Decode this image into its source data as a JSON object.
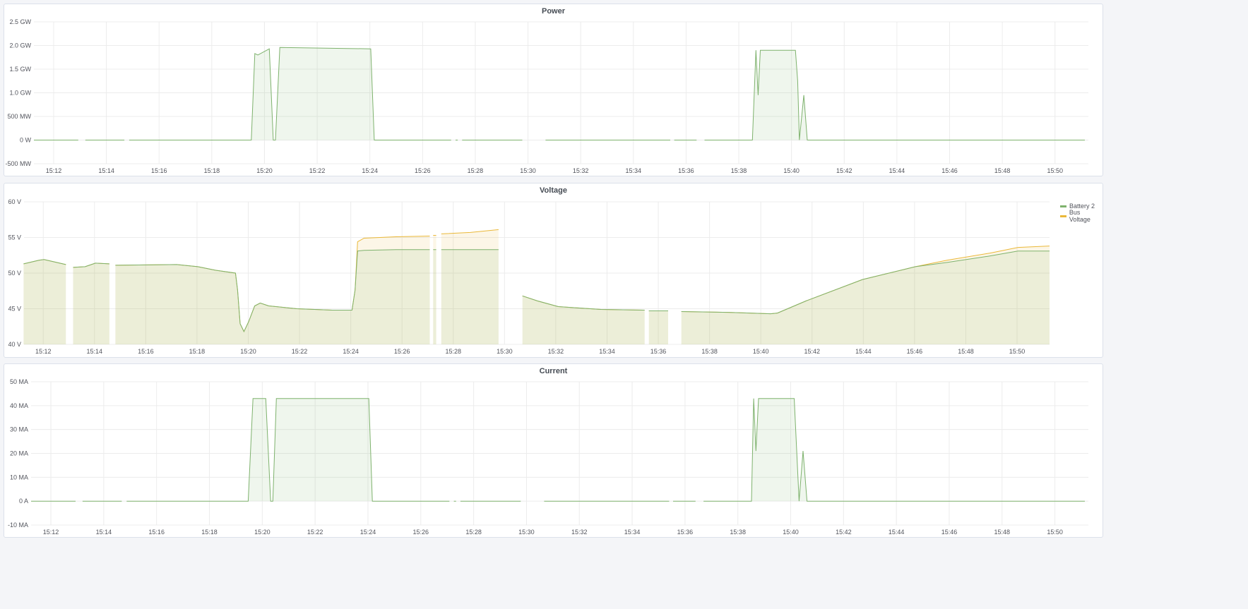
{
  "colors": {
    "battery": "#7EB26D",
    "bus": "#EAB839",
    "grid": "#ececec"
  },
  "chart_data": [
    {
      "id": "power",
      "type": "area",
      "title": "Power",
      "xlim": [
        "15:11:15",
        "15:51:16"
      ],
      "xticks": [
        "15:12",
        "15:14",
        "15:16",
        "15:18",
        "15:20",
        "15:22",
        "15:24",
        "15:26",
        "15:28",
        "15:30",
        "15:32",
        "15:34",
        "15:36",
        "15:38",
        "15:40",
        "15:42",
        "15:44",
        "15:46",
        "15:48",
        "15:50"
      ],
      "ylim": [
        -0.5,
        2.5
      ],
      "yunit": "GW",
      "yticks": [
        {
          "v": 2.5,
          "label": "2.5 GW"
        },
        {
          "v": 2.0,
          "label": "2.0 GW"
        },
        {
          "v": 1.5,
          "label": "1.5 GW"
        },
        {
          "v": 1.0,
          "label": "1.0 GW"
        },
        {
          "v": 0.5,
          "label": "500 MW"
        },
        {
          "v": 0,
          "label": "0 W"
        },
        {
          "v": -0.5,
          "label": "-500 MW"
        }
      ],
      "grid": true,
      "series": [
        {
          "color": "#7EB26D",
          "points": [
            [
              "15:11:15",
              0
            ],
            [
              "15:12:56",
              0
            ],
            null,
            [
              "15:13:12",
              0
            ],
            [
              "15:14:41",
              0
            ],
            null,
            [
              "15:14:52",
              0
            ],
            [
              "15:19:30",
              0
            ],
            [
              "15:19:38",
              1.83
            ],
            [
              "15:19:45",
              1.8
            ],
            [
              "15:20:11",
              1.93
            ],
            [
              "15:20:20",
              0
            ],
            [
              "15:20:25",
              0
            ],
            [
              "15:20:35",
              1.96
            ],
            [
              "15:24:02",
              1.93
            ],
            [
              "15:24:10",
              0
            ],
            [
              "15:27:05",
              0
            ],
            null,
            [
              "15:27:15",
              0
            ],
            [
              "15:27:20",
              0
            ],
            null,
            [
              "15:27:30",
              0
            ],
            [
              "15:29:47",
              0
            ],
            null,
            [
              "15:30:40",
              0
            ],
            [
              "15:35:24",
              0
            ],
            null,
            [
              "15:35:33",
              0
            ],
            [
              "15:36:24",
              0
            ],
            null,
            [
              "15:36:42",
              0
            ],
            [
              "15:38:31",
              0
            ],
            [
              "15:38:39",
              1.9
            ],
            [
              "15:38:44",
              0.95
            ],
            [
              "15:38:49",
              1.9
            ],
            [
              "15:40:09",
              1.9
            ],
            [
              "15:40:14",
              1.25
            ],
            [
              "15:40:18",
              0
            ],
            [
              "15:40:28",
              0.95
            ],
            [
              "15:40:36",
              0
            ],
            [
              "15:51:08",
              0
            ]
          ]
        }
      ]
    },
    {
      "id": "voltage",
      "type": "area",
      "title": "Voltage",
      "xlim": [
        "15:11:15",
        "15:51:16"
      ],
      "xticks": [
        "15:12",
        "15:14",
        "15:16",
        "15:18",
        "15:20",
        "15:22",
        "15:24",
        "15:26",
        "15:28",
        "15:30",
        "15:32",
        "15:34",
        "15:36",
        "15:38",
        "15:40",
        "15:42",
        "15:44",
        "15:46",
        "15:48",
        "15:50"
      ],
      "ylim": [
        40,
        60
      ],
      "yunit": "V",
      "yticks": [
        {
          "v": 60,
          "label": "60 V"
        },
        {
          "v": 55,
          "label": "55 V"
        },
        {
          "v": 50,
          "label": "50 V"
        },
        {
          "v": 45,
          "label": "45 V"
        },
        {
          "v": 40,
          "label": "40 V"
        }
      ],
      "grid": true,
      "legend": "right",
      "series": [
        {
          "name": "Bus Voltage",
          "color": "#EAB839",
          "points": [
            [
              "15:11:14",
              51.3
            ],
            [
              "15:11:50",
              51.8
            ],
            [
              "15:12:02",
              51.9
            ],
            [
              "15:12:53",
              51.2
            ],
            null,
            [
              "15:13:10",
              50.8
            ],
            [
              "15:13:38",
              50.9
            ],
            [
              "15:14:02",
              51.4
            ],
            [
              "15:14:35",
              51.3
            ],
            null,
            [
              "15:14:49",
              51.1
            ],
            [
              "15:17:13",
              51.2
            ],
            [
              "15:18:02",
              50.9
            ],
            [
              "15:18:44",
              50.4
            ],
            [
              "15:19:30",
              50.0
            ],
            [
              "15:19:35",
              47.6
            ],
            [
              "15:19:41",
              42.9
            ],
            [
              "15:19:50",
              41.8
            ],
            [
              "15:20:01",
              43.2
            ],
            [
              "15:20:15",
              45.4
            ],
            [
              "15:20:28",
              45.8
            ],
            [
              "15:20:48",
              45.4
            ],
            [
              "15:21:54",
              45.0
            ],
            [
              "15:23:17",
              44.8
            ],
            [
              "15:24:03",
              44.8
            ],
            [
              "15:24:10",
              47.6
            ],
            [
              "15:24:16",
              54.4
            ],
            [
              "15:24:31",
              54.9
            ],
            [
              "15:25:46",
              55.1
            ],
            [
              "15:27:05",
              55.2
            ],
            null,
            [
              "15:27:13",
              55.3
            ],
            [
              "15:27:20",
              55.3
            ],
            null,
            [
              "15:27:32",
              55.5
            ],
            [
              "15:28:40",
              55.7
            ],
            [
              "15:29:46",
              56.1
            ],
            null,
            [
              "15:30:42",
              46.8
            ],
            [
              "15:31:17",
              46.1
            ],
            [
              "15:32:06",
              45.3
            ],
            [
              "15:33:46",
              44.9
            ],
            [
              "15:35:28",
              44.8
            ],
            null,
            [
              "15:35:38",
              44.7
            ],
            [
              "15:36:23",
              44.7
            ],
            null,
            [
              "15:36:54",
              44.6
            ],
            [
              "15:38:43",
              44.5
            ],
            [
              "15:40:23",
              44.3
            ],
            [
              "15:40:39",
              44.4
            ],
            [
              "15:41:46",
              46.1
            ],
            [
              "15:43:58",
              49.1
            ],
            [
              "15:46:02",
              50.9
            ],
            [
              "15:47:16",
              51.8
            ],
            [
              "15:48:56",
              52.8
            ],
            [
              "15:50:02",
              53.6
            ],
            [
              "15:51:16",
              53.8
            ]
          ]
        },
        {
          "name": "Battery 2",
          "color": "#7EB26D",
          "points": [
            [
              "15:11:14",
              51.3
            ],
            [
              "15:11:50",
              51.8
            ],
            [
              "15:12:02",
              51.9
            ],
            [
              "15:12:53",
              51.2
            ],
            null,
            [
              "15:13:10",
              50.8
            ],
            [
              "15:13:38",
              50.9
            ],
            [
              "15:14:02",
              51.4
            ],
            [
              "15:14:35",
              51.3
            ],
            null,
            [
              "15:14:49",
              51.1
            ],
            [
              "15:17:13",
              51.2
            ],
            [
              "15:18:02",
              50.9
            ],
            [
              "15:18:44",
              50.4
            ],
            [
              "15:19:30",
              50.0
            ],
            [
              "15:19:35",
              47.6
            ],
            [
              "15:19:41",
              42.9
            ],
            [
              "15:19:50",
              41.8
            ],
            [
              "15:20:01",
              43.2
            ],
            [
              "15:20:15",
              45.4
            ],
            [
              "15:20:28",
              45.8
            ],
            [
              "15:20:48",
              45.4
            ],
            [
              "15:21:54",
              45.0
            ],
            [
              "15:23:17",
              44.8
            ],
            [
              "15:24:03",
              44.8
            ],
            [
              "15:24:10",
              47.6
            ],
            [
              "15:24:16",
              53.1
            ],
            [
              "15:24:31",
              53.2
            ],
            [
              "15:25:46",
              53.3
            ],
            [
              "15:27:05",
              53.3
            ],
            null,
            [
              "15:27:13",
              53.3
            ],
            [
              "15:27:20",
              53.3
            ],
            null,
            [
              "15:27:32",
              53.3
            ],
            [
              "15:28:40",
              53.3
            ],
            [
              "15:29:46",
              53.3
            ],
            null,
            [
              "15:30:42",
              46.8
            ],
            [
              "15:31:17",
              46.1
            ],
            [
              "15:32:06",
              45.3
            ],
            [
              "15:33:46",
              44.9
            ],
            [
              "15:35:28",
              44.8
            ],
            null,
            [
              "15:35:38",
              44.7
            ],
            [
              "15:36:23",
              44.7
            ],
            null,
            [
              "15:36:54",
              44.6
            ],
            [
              "15:38:43",
              44.5
            ],
            [
              "15:40:23",
              44.3
            ],
            [
              "15:40:39",
              44.4
            ],
            [
              "15:41:46",
              46.1
            ],
            [
              "15:43:58",
              49.1
            ],
            [
              "15:46:02",
              50.9
            ],
            [
              "15:47:16",
              51.5
            ],
            [
              "15:48:56",
              52.4
            ],
            [
              "15:50:02",
              53.1
            ],
            [
              "15:51:16",
              53.1
            ]
          ]
        }
      ]
    },
    {
      "id": "current",
      "type": "area",
      "title": "Current",
      "xlim": [
        "15:11:15",
        "15:51:16"
      ],
      "xticks": [
        "15:12",
        "15:14",
        "15:16",
        "15:18",
        "15:20",
        "15:22",
        "15:24",
        "15:26",
        "15:28",
        "15:30",
        "15:32",
        "15:34",
        "15:36",
        "15:38",
        "15:40",
        "15:42",
        "15:44",
        "15:46",
        "15:48",
        "15:50"
      ],
      "ylim": [
        -10,
        50
      ],
      "yunit": "MA",
      "yticks": [
        {
          "v": 50,
          "label": "50 MA"
        },
        {
          "v": 40,
          "label": "40 MA"
        },
        {
          "v": 30,
          "label": "30 MA"
        },
        {
          "v": 20,
          "label": "20 MA"
        },
        {
          "v": 10,
          "label": "10 MA"
        },
        {
          "v": 0,
          "label": "0 A"
        },
        {
          "v": -10,
          "label": "-10 MA"
        }
      ],
      "grid": true,
      "series": [
        {
          "color": "#7EB26D",
          "points": [
            [
              "15:11:15",
              0
            ],
            [
              "15:12:56",
              0
            ],
            null,
            [
              "15:13:12",
              0
            ],
            [
              "15:14:41",
              0
            ],
            null,
            [
              "15:14:52",
              0
            ],
            [
              "15:19:28",
              0
            ],
            [
              "15:19:39",
              43
            ],
            [
              "15:20:08",
              43
            ],
            [
              "15:20:19",
              0
            ],
            [
              "15:20:24",
              0
            ],
            [
              "15:20:32",
              43
            ],
            [
              "15:24:02",
              43
            ],
            [
              "15:24:10",
              0
            ],
            [
              "15:27:05",
              0
            ],
            null,
            [
              "15:27:15",
              0
            ],
            [
              "15:27:20",
              0
            ],
            null,
            [
              "15:27:30",
              0
            ],
            [
              "15:29:47",
              0
            ],
            null,
            [
              "15:30:40",
              0
            ],
            [
              "15:35:24",
              0
            ],
            null,
            [
              "15:35:33",
              0
            ],
            [
              "15:36:24",
              0
            ],
            null,
            [
              "15:36:42",
              0
            ],
            [
              "15:38:31",
              0
            ],
            [
              "15:38:36",
              43
            ],
            [
              "15:38:41",
              21
            ],
            [
              "15:38:47",
              43
            ],
            [
              "15:40:08",
              43
            ],
            [
              "15:40:19",
              0
            ],
            [
              "15:40:28",
              21
            ],
            [
              "15:40:37",
              0
            ],
            [
              "15:51:08",
              0
            ]
          ]
        }
      ]
    }
  ]
}
